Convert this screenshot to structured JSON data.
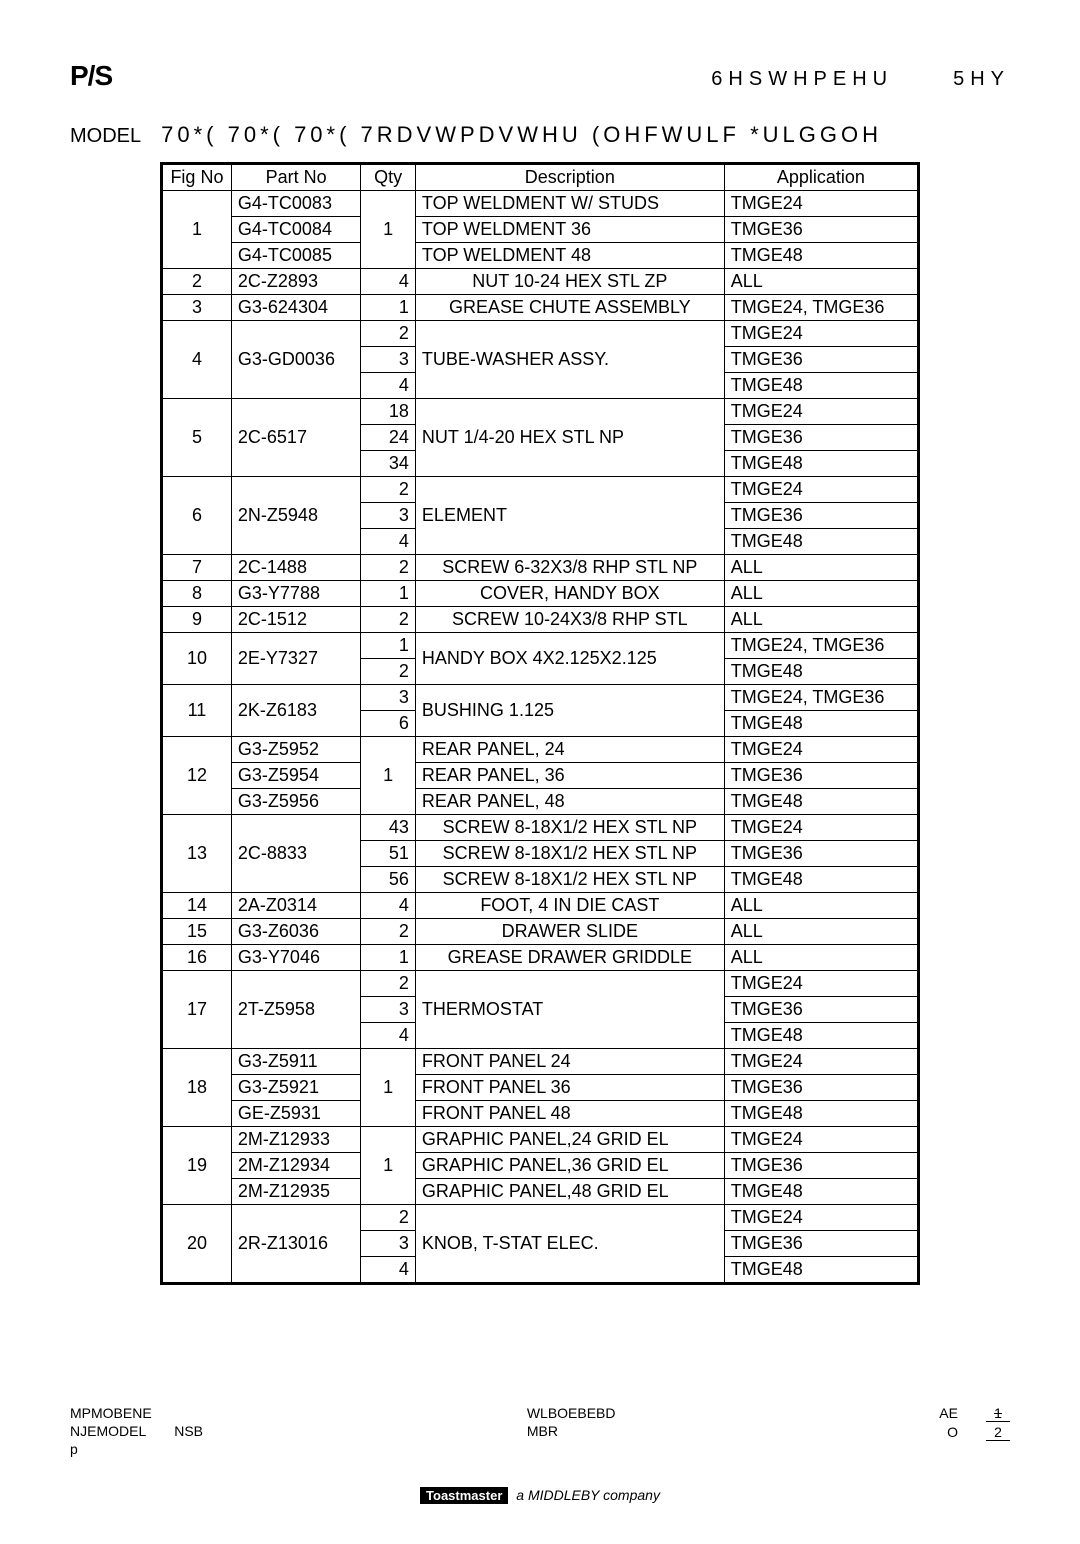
{
  "header": {
    "logo_text": "P/S",
    "date_text": "6HSWHPEHU",
    "rev_text": "5HY"
  },
  "model": {
    "label": "MODEL",
    "text": "70*(   70*(   70*(   7RDVWPDVWHU (OHFWULF *ULGGOH"
  },
  "columns": [
    "Fig No",
    "Part No",
    "Qty",
    "Description",
    "Application"
  ],
  "groups": [
    {
      "fig": "1",
      "part_rows": [
        "G4-TC0083",
        "G4-TC0084",
        "G4-TC0085"
      ],
      "qty_rows": [
        "",
        "1",
        ""
      ],
      "desc_rows": [
        "TOP WELDMENT W/ STUDS",
        "TOP WELDMENT 36",
        "TOP WELDMENT 48"
      ],
      "app_rows": [
        "TMGE24",
        "TMGE36",
        "TMGE48"
      ],
      "part_merge": false,
      "qty_merge": true,
      "desc_merge": false
    },
    {
      "fig": "2",
      "part_rows": [
        "2C-Z2893"
      ],
      "qty_rows": [
        "4"
      ],
      "desc_rows": [
        "NUT 10-24 HEX STL ZP"
      ],
      "app_rows": [
        "ALL"
      ],
      "desc_center": true
    },
    {
      "fig": "3",
      "part_rows": [
        "G3-624304"
      ],
      "qty_rows": [
        "1"
      ],
      "desc_rows": [
        "GREASE CHUTE ASSEMBLY"
      ],
      "app_rows": [
        "TMGE24, TMGE36"
      ],
      "desc_center": true
    },
    {
      "fig": "4",
      "part_rows": [
        "G3-GD0036"
      ],
      "qty_rows": [
        "2",
        "3",
        "4"
      ],
      "desc_rows": [
        "TUBE-WASHER ASSY."
      ],
      "app_rows": [
        "TMGE24",
        "TMGE36",
        "TMGE48"
      ],
      "part_merge": true,
      "desc_merge": true
    },
    {
      "fig": "5",
      "part_rows": [
        "2C-6517"
      ],
      "qty_rows": [
        "18",
        "24",
        "34"
      ],
      "desc_rows": [
        "NUT 1/4-20 HEX STL NP"
      ],
      "app_rows": [
        "TMGE24",
        "TMGE36",
        "TMGE48"
      ],
      "part_merge": true,
      "desc_merge": true
    },
    {
      "fig": "6",
      "part_rows": [
        "2N-Z5948"
      ],
      "qty_rows": [
        "2",
        "3",
        "4"
      ],
      "desc_rows": [
        "ELEMENT"
      ],
      "app_rows": [
        "TMGE24",
        "TMGE36",
        "TMGE48"
      ],
      "part_merge": true,
      "desc_merge": true
    },
    {
      "fig": "7",
      "part_rows": [
        "2C-1488"
      ],
      "qty_rows": [
        "2"
      ],
      "desc_rows": [
        "SCREW 6-32X3/8 RHP STL NP"
      ],
      "app_rows": [
        "ALL"
      ],
      "desc_center": true
    },
    {
      "fig": "8",
      "part_rows": [
        "G3-Y7788"
      ],
      "qty_rows": [
        "1"
      ],
      "desc_rows": [
        "COVER, HANDY BOX"
      ],
      "app_rows": [
        "ALL"
      ],
      "desc_center": true
    },
    {
      "fig": "9",
      "part_rows": [
        "2C-1512"
      ],
      "qty_rows": [
        "2"
      ],
      "desc_rows": [
        "SCREW 10-24X3/8 RHP STL"
      ],
      "app_rows": [
        "ALL"
      ],
      "desc_center": true
    },
    {
      "fig": "10",
      "part_rows": [
        "2E-Y7327"
      ],
      "qty_rows": [
        "1",
        "2"
      ],
      "desc_rows": [
        "HANDY BOX 4X2.125X2.125"
      ],
      "app_rows": [
        "TMGE24, TMGE36",
        "TMGE48"
      ],
      "part_merge": true,
      "desc_merge": true
    },
    {
      "fig": "11",
      "part_rows": [
        "2K-Z6183"
      ],
      "qty_rows": [
        "3",
        "6"
      ],
      "desc_rows": [
        "BUSHING 1.125"
      ],
      "app_rows": [
        "TMGE24, TMGE36",
        "TMGE48"
      ],
      "part_merge": true,
      "desc_merge": true
    },
    {
      "fig": "12",
      "part_rows": [
        "G3-Z5952",
        "G3-Z5954",
        "G3-Z5956"
      ],
      "qty_rows": [
        "",
        "1",
        ""
      ],
      "desc_rows": [
        "REAR PANEL, 24",
        "REAR PANEL, 36",
        "REAR PANEL, 48"
      ],
      "app_rows": [
        "TMGE24",
        "TMGE36",
        "TMGE48"
      ],
      "part_merge": false,
      "qty_merge": true,
      "desc_merge": false
    },
    {
      "fig": "13",
      "part_rows": [
        "2C-8833"
      ],
      "qty_rows": [
        "43",
        "51",
        "56"
      ],
      "desc_rows": [
        "SCREW 8-18X1/2 HEX STL NP",
        "SCREW 8-18X1/2 HEX STL NP",
        "SCREW 8-18X1/2 HEX STL NP"
      ],
      "app_rows": [
        "TMGE24",
        "TMGE36",
        "TMGE48"
      ],
      "part_merge": true,
      "desc_merge": false,
      "desc_center": true
    },
    {
      "fig": "14",
      "part_rows": [
        "2A-Z0314"
      ],
      "qty_rows": [
        "4"
      ],
      "desc_rows": [
        "FOOT, 4 IN DIE CAST"
      ],
      "app_rows": [
        "ALL"
      ],
      "desc_center": true
    },
    {
      "fig": "15",
      "part_rows": [
        "G3-Z6036"
      ],
      "qty_rows": [
        "2"
      ],
      "desc_rows": [
        "DRAWER SLIDE"
      ],
      "app_rows": [
        "ALL"
      ],
      "desc_center": true
    },
    {
      "fig": "16",
      "part_rows": [
        "G3-Y7046"
      ],
      "qty_rows": [
        "1"
      ],
      "desc_rows": [
        "GREASE DRAWER GRIDDLE"
      ],
      "app_rows": [
        "ALL"
      ],
      "desc_center": true
    },
    {
      "fig": "17",
      "part_rows": [
        "2T-Z5958"
      ],
      "qty_rows": [
        "2",
        "3",
        "4"
      ],
      "desc_rows": [
        "THERMOSTAT"
      ],
      "app_rows": [
        "TMGE24",
        "TMGE36",
        "TMGE48"
      ],
      "part_merge": true,
      "desc_merge": true
    },
    {
      "fig": "18",
      "part_rows": [
        "G3-Z5911",
        "G3-Z5921",
        "GE-Z5931"
      ],
      "qty_rows": [
        "",
        "1",
        ""
      ],
      "desc_rows": [
        "FRONT PANEL 24",
        "FRONT PANEL 36",
        "FRONT PANEL 48"
      ],
      "app_rows": [
        "TMGE24",
        "TMGE36",
        "TMGE48"
      ],
      "part_merge": false,
      "qty_merge": true,
      "desc_merge": false
    },
    {
      "fig": "19",
      "part_rows": [
        "2M-Z12933",
        "2M-Z12934",
        "2M-Z12935"
      ],
      "qty_rows": [
        "",
        "1",
        ""
      ],
      "desc_rows": [
        "GRAPHIC PANEL,24  GRID EL",
        "GRAPHIC PANEL,36  GRID EL",
        "GRAPHIC PANEL,48  GRID EL"
      ],
      "app_rows": [
        "TMGE24",
        "TMGE36",
        "TMGE48"
      ],
      "part_merge": false,
      "qty_merge": true,
      "desc_merge": false
    },
    {
      "fig": "20",
      "part_rows": [
        "2R-Z13016"
      ],
      "qty_rows": [
        "2",
        "3",
        "4"
      ],
      "desc_rows": [
        "KNOB, T-STAT ELEC."
      ],
      "app_rows": [
        "TMGE24",
        "TMGE36",
        "TMGE48"
      ],
      "part_merge": true,
      "desc_merge": true
    }
  ],
  "footer": {
    "left1": "MPMOBENE",
    "left2": "NJEMODEL",
    "left3": "p",
    "mid1a": "NSB",
    "mid1b": "WLBOEBEBD",
    "mid2": "MBR",
    "right_label1": "AE",
    "right_val1": "1",
    "right_label2": "O",
    "right_val2": "2"
  },
  "brand": {
    "box": "Toastmaster",
    "tag": "a MIDDLEBY company"
  }
}
